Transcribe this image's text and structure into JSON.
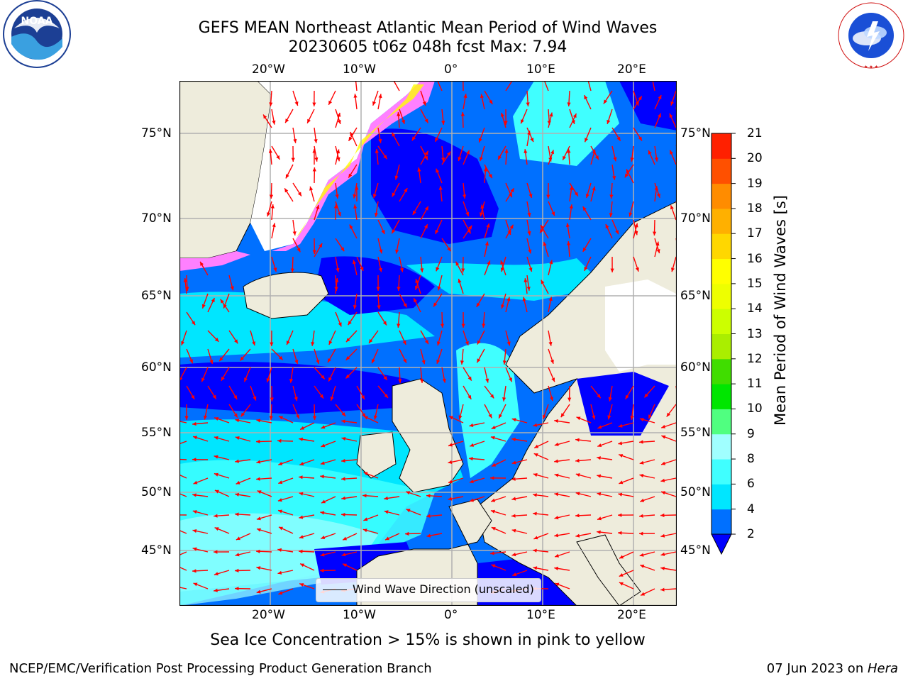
{
  "title": {
    "line1": "GEFS MEAN Northeast Atlantic Mean Period of Wind Waves",
    "line2": "20230605 t06z 048h fcst   Max: 7.94"
  },
  "logos": {
    "noaa": {
      "text": "NOAA",
      "ring_text": "NATIONAL OCEANIC AND ATMOSPHERIC ADMINISTRATION · U.S. DEPARTMENT OF COMMERCE"
    },
    "nws": {
      "ring_text": "NATIONAL WEATHER SERVICE"
    }
  },
  "map": {
    "lon_labels": [
      "20°W",
      "10°W",
      "0°",
      "10°E",
      "20°E"
    ],
    "lat_labels": [
      "75°N",
      "70°N",
      "65°N",
      "60°N",
      "55°N",
      "50°N",
      "45°N"
    ],
    "legend_label": "Wind Wave Direction (unscaled)",
    "colors": {
      "land": "#eeecdc",
      "gridline": "#b0b0b0",
      "arrow": "#ff0000",
      "ice_pink": "#ff80ff",
      "ice_yellow": "#ffff00"
    }
  },
  "colorbar": {
    "label": "Mean Period of Wind Waves [s]",
    "ticks": [
      "2",
      "4",
      "6",
      "8",
      "9",
      "10",
      "11",
      "12",
      "13",
      "14",
      "15",
      "16",
      "17",
      "18",
      "19",
      "20",
      "21"
    ],
    "colors": [
      "#0070ff",
      "#00e6ff",
      "#40ffff",
      "#a0ffff",
      "#50ff80",
      "#00e600",
      "#40dd00",
      "#aaee00",
      "#ccff00",
      "#eeff00",
      "#ffff00",
      "#ffd700",
      "#ffb000",
      "#ff8c00",
      "#ff5000",
      "#ff2000"
    ],
    "under_color": "#0000ff"
  },
  "footnote": "Sea Ice Concentration > 15% is shown in pink to yellow",
  "footer": {
    "left": "NCEP/EMC/Verification Post Processing Product Generation Branch",
    "right_prefix": "07 Jun 2023 on ",
    "right_host": "Hera"
  }
}
